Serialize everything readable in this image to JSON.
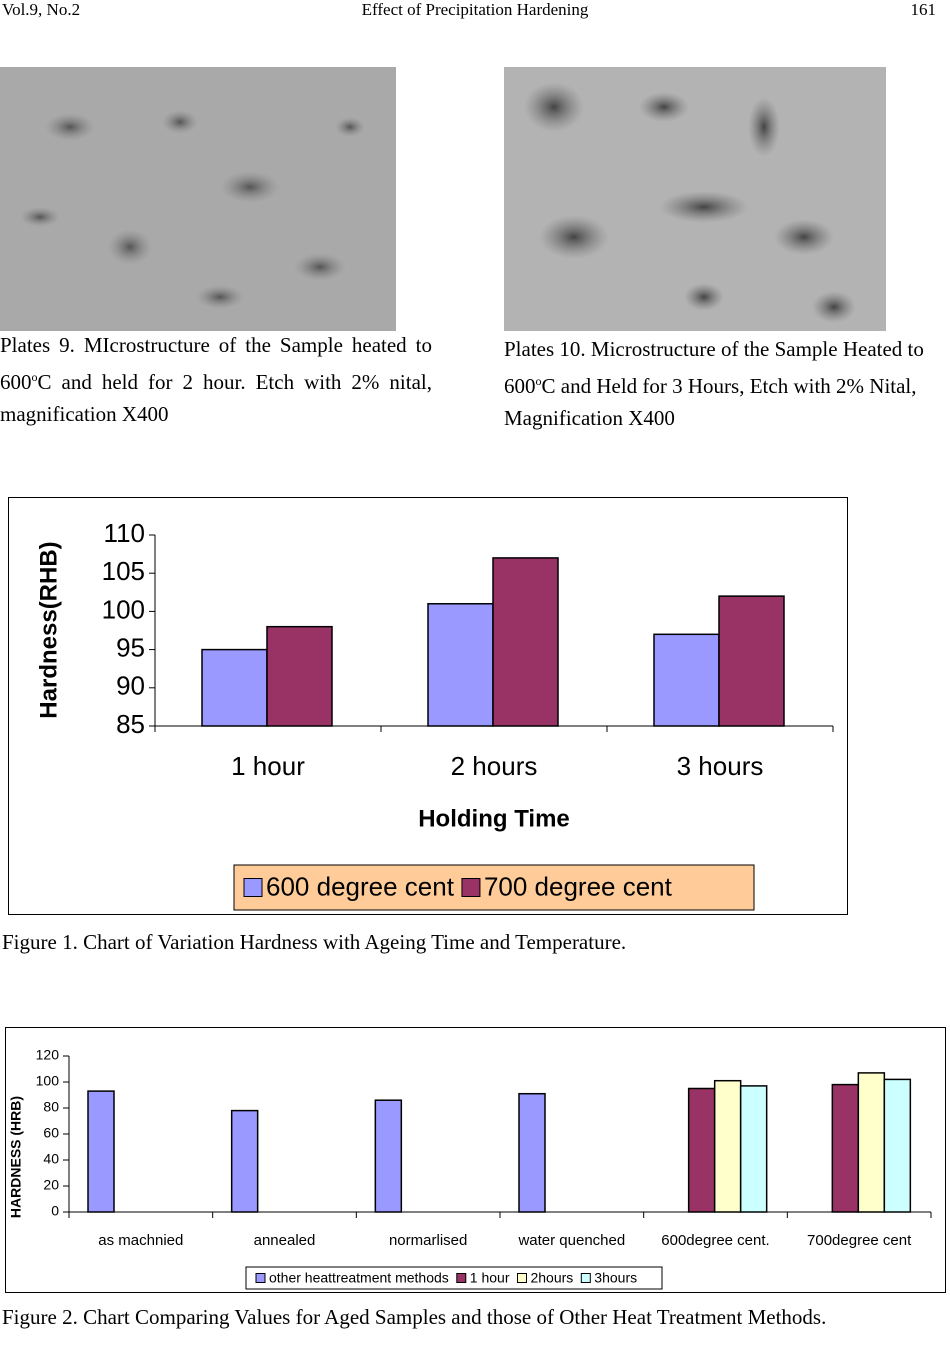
{
  "header": {
    "left": "Vol.9, No.2",
    "center": "Effect of Precipitation Hardening",
    "page": "161"
  },
  "plates": [
    {
      "caption": [
        "Plates 9. MIcrostructure of the Sample heated to 600",
        "o",
        "C and held for 2 hour. Etch with 2% nital, magnification X400"
      ]
    },
    {
      "caption": [
        "Plates 10. Microstructure of the Sample Heated to 600",
        "o",
        "C and Held for 3 Hours, Etch with 2% Nital, Magnification X400"
      ]
    }
  ],
  "figure_captions": [
    "Figure 1. Chart of Variation Hardness with Ageing Time and Temperature.",
    "Figure 2.  Chart Comparing Values for Aged Samples and those of Other Heat Treatment Methods."
  ],
  "chart_data": [
    {
      "type": "bar",
      "categories": [
        "1 hour",
        "2 hours",
        "3 hours"
      ],
      "series": [
        {
          "name": "600 degree cent",
          "color": "#9999ff",
          "values": [
            95,
            101,
            97
          ]
        },
        {
          "name": "700 degree cent",
          "color": "#993366",
          "values": [
            98,
            107,
            102
          ]
        }
      ],
      "ylim": [
        85,
        110
      ],
      "yticks": [
        85,
        90,
        95,
        100,
        105,
        110
      ],
      "xlabel": "Holding Time",
      "ylabel": "Hardness(RHB)",
      "legend": "bottom",
      "legend_color": "#ffcc99"
    },
    {
      "type": "bar",
      "categories": [
        "as machnied",
        "annealed",
        "normarlised",
        "water quenched",
        "600degree cent.",
        "700degree cent"
      ],
      "series": [
        {
          "name": "other heattreatment methods",
          "color": "#9999ff",
          "values": [
            93,
            78,
            86,
            91,
            null,
            null
          ]
        },
        {
          "name": "1 hour",
          "color": "#993366",
          "values": [
            null,
            null,
            null,
            null,
            95,
            98
          ]
        },
        {
          "name": "2hours",
          "color": "#ffffcc",
          "values": [
            null,
            null,
            null,
            null,
            101,
            107
          ]
        },
        {
          "name": "3hours",
          "color": "#ccffff",
          "values": [
            null,
            null,
            null,
            null,
            97,
            102
          ]
        }
      ],
      "ylim": [
        0,
        120
      ],
      "yticks": [
        0,
        20,
        40,
        60,
        80,
        100,
        120
      ],
      "ylabel": "HARDNESS (HRB)",
      "legend": "bottom",
      "legend_color": "#ffffff"
    }
  ]
}
